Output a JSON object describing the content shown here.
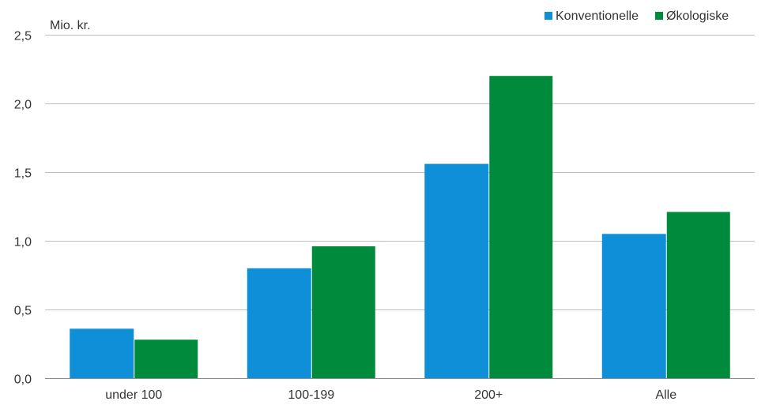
{
  "chart_data": {
    "type": "bar",
    "title": "",
    "unit_label": "Mio. kr.",
    "categories": [
      "under 100",
      "100-199",
      "200+",
      "Alle"
    ],
    "series": [
      {
        "name": "Konventionelle",
        "color": "#0f8fd8",
        "values": [
          0.36,
          0.8,
          1.56,
          1.05
        ]
      },
      {
        "name": "Økologiske",
        "color": "#008a3c",
        "values": [
          0.28,
          0.96,
          2.2,
          1.21
        ]
      }
    ],
    "ylim": [
      0,
      2.5
    ],
    "y_ticks": [
      "0,0",
      "0,5",
      "1,0",
      "1,5",
      "2,0",
      "2,5"
    ],
    "grid": true,
    "legend_position": "top-right"
  }
}
